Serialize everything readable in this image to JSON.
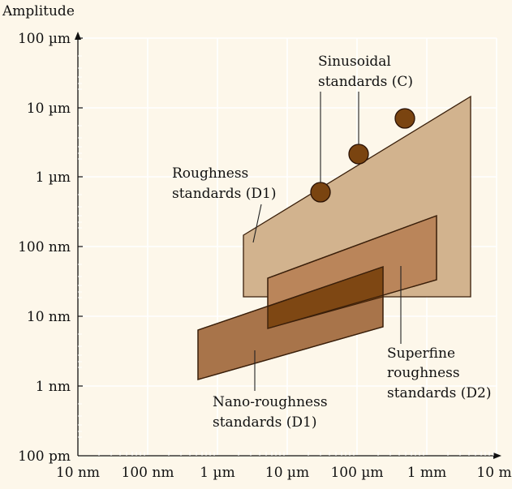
{
  "chart_data": {
    "type": "diagram",
    "ylabel": "Amplitude",
    "y_ticks": [
      "100 µm",
      "10 µm",
      "1 µm",
      "100 nm",
      "10 nm",
      "1 nm",
      "100 pm"
    ],
    "x_ticks": [
      "10 nm",
      "100 nm",
      "1 µm",
      "10 µm",
      "100 µm",
      "1 mm",
      "10 m"
    ],
    "scale": "log-log",
    "grid": true,
    "regions": [
      {
        "label": "Roughness\nstandards (D1)",
        "color": "#d2b38e"
      },
      {
        "label": "Superfine\nroughness\nstandards (D2)",
        "color": "#ba855a"
      },
      {
        "label": "Nano-roughness\nstandards (D1)",
        "color": "#a8744a"
      }
    ],
    "point_set": {
      "label": "Sinusoidal\nstandards (C)",
      "color": "#7a4410"
    }
  }
}
